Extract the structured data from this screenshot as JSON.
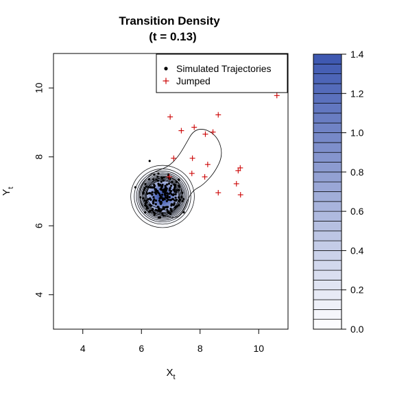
{
  "chart_data": {
    "type": "scatter",
    "title_line1": "Transition Density",
    "title_line2": "(t = 0.13)",
    "xlabel_main": "X",
    "xlabel_sub": "t",
    "ylabel_main": "Y",
    "ylabel_sub": "t",
    "xlim": [
      3,
      11
    ],
    "ylim": [
      3,
      11
    ],
    "x_ticks": [
      4,
      6,
      8,
      10
    ],
    "y_ticks": [
      4,
      6,
      8,
      10
    ],
    "x_tick_labels": [
      "4",
      "6",
      "8",
      "10"
    ],
    "y_tick_labels": [
      "4",
      "6",
      "8",
      "10"
    ],
    "grid": false,
    "legend": {
      "position": "top-right",
      "entries": [
        {
          "label": "Simulated Trajectories",
          "marker": "dot",
          "color": "#000000"
        },
        {
          "label": "Jumped",
          "marker": "plus",
          "color": "#cc0000"
        }
      ]
    },
    "density": {
      "center": [
        6.72,
        6.85
      ],
      "sd": [
        0.42,
        0.35
      ],
      "peak": 1.4
    },
    "colorbar": {
      "range": [
        0.0,
        1.4
      ],
      "ticks": [
        0.0,
        0.2,
        0.4,
        0.6,
        0.8,
        1.0,
        1.2,
        1.4
      ],
      "tick_labels": [
        "0.0",
        "0.2",
        "0.4",
        "0.6",
        "0.8",
        "1.0",
        "1.2",
        "1.4"
      ],
      "levels": 28,
      "color_low": "#ffffff",
      "color_high": "#3b56b0"
    },
    "series": [
      {
        "name": "Simulated Trajectories",
        "marker": "dot",
        "color": "#000000",
        "cluster_center": [
          6.72,
          6.85
        ],
        "cluster_spread": [
          0.38,
          0.33
        ],
        "count": 220,
        "outliers": [
          [
            6.28,
            7.88
          ],
          [
            6.92,
            7.48
          ]
        ]
      },
      {
        "name": "Jumped",
        "marker": "plus",
        "color": "#cc0000",
        "points": [
          [
            6.98,
            9.16
          ],
          [
            7.36,
            8.76
          ],
          [
            7.8,
            8.86
          ],
          [
            8.62,
            9.22
          ],
          [
            8.44,
            8.72
          ],
          [
            8.18,
            8.66
          ],
          [
            10.62,
            9.78
          ],
          [
            7.1,
            7.96
          ],
          [
            7.74,
            7.96
          ],
          [
            8.26,
            7.78
          ],
          [
            8.16,
            7.42
          ],
          [
            7.72,
            7.52
          ],
          [
            6.95,
            7.42
          ],
          [
            9.37,
            7.68
          ],
          [
            9.3,
            7.6
          ],
          [
            9.24,
            7.22
          ],
          [
            9.38,
            6.9
          ],
          [
            8.62,
            6.96
          ]
        ]
      }
    ]
  }
}
